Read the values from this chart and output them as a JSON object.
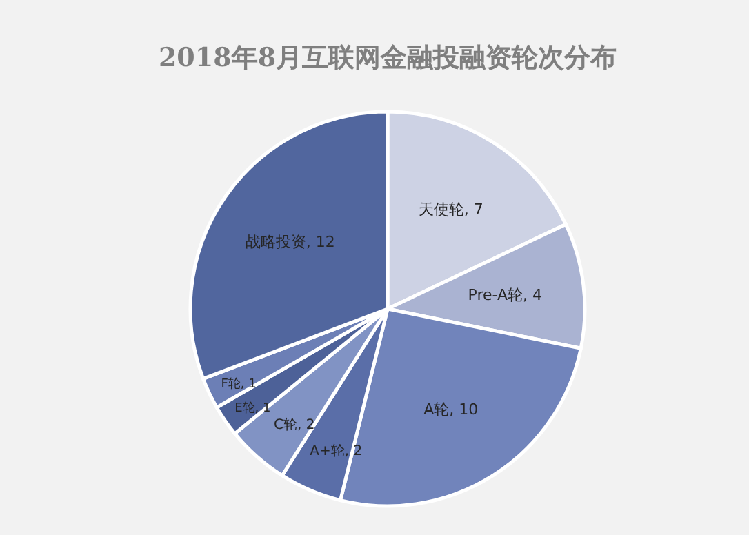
{
  "chart_data": {
    "type": "pie",
    "title": "2018年8月互联网金融投融资轮次分布",
    "categories": [
      "天使轮",
      "Pre-A轮",
      "A轮",
      "A+轮",
      "C轮",
      "E轮",
      "F轮",
      "战略投资"
    ],
    "values": [
      7,
      4,
      10,
      2,
      2,
      1,
      1,
      12
    ],
    "value_labels": [
      ", 7",
      ", 4",
      ", 10",
      ", 2",
      ", 2",
      ", 1",
      ", 1",
      ", 12"
    ],
    "legend": false,
    "colors": [
      "#cdd2e4",
      "#aab3d2",
      "#7184bb",
      "#5a6ea8",
      "#8193c4",
      "#4d6198",
      "#6c7fb6",
      "#51669e"
    ]
  }
}
